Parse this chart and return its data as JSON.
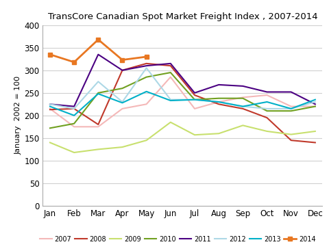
{
  "title": "TransCore Canadian Spot Market Freight Index , 2007-2014",
  "ylabel": "January  2002 = 100",
  "months": [
    "Jan",
    "Feb",
    "Mar",
    "Apr",
    "May",
    "Jun",
    "Jul",
    "Aug",
    "Sep",
    "Oct",
    "Nov",
    "Dec"
  ],
  "ylim": [
    0,
    400
  ],
  "yticks": [
    0,
    50,
    100,
    150,
    200,
    250,
    300,
    350,
    400
  ],
  "series": {
    "2007": {
      "values": [
        215,
        175,
        175,
        215,
        225,
        285,
        215,
        230,
        240,
        245,
        220,
        220
      ],
      "color": "#f4b8b8",
      "linewidth": 1.5,
      "marker": null
    },
    "2008": {
      "values": [
        213,
        215,
        180,
        300,
        315,
        310,
        245,
        225,
        215,
        195,
        145,
        140
      ],
      "color": "#c0392b",
      "linewidth": 1.5,
      "marker": null
    },
    "2009": {
      "values": [
        140,
        118,
        125,
        130,
        145,
        185,
        157,
        160,
        178,
        165,
        158,
        165
      ],
      "color": "#c8e06e",
      "linewidth": 1.5,
      "marker": null
    },
    "2010": {
      "values": [
        172,
        182,
        250,
        260,
        285,
        295,
        235,
        238,
        238,
        210,
        210,
        220
      ],
      "color": "#70a020",
      "linewidth": 1.5,
      "marker": null
    },
    "2011": {
      "values": [
        225,
        220,
        335,
        300,
        310,
        315,
        250,
        268,
        265,
        252,
        252,
        225
      ],
      "color": "#4b0082",
      "linewidth": 1.5,
      "marker": null
    },
    "2012": {
      "values": [
        225,
        215,
        275,
        230,
        305,
        235,
        235,
        230,
        220,
        215,
        215,
        230
      ],
      "color": "#add8e6",
      "linewidth": 1.5,
      "marker": null
    },
    "2013": {
      "values": [
        220,
        200,
        248,
        228,
        253,
        233,
        235,
        230,
        220,
        230,
        215,
        235
      ],
      "color": "#00b0c8",
      "linewidth": 1.5,
      "marker": null
    },
    "2014": {
      "values": [
        335,
        318,
        368,
        323,
        330,
        null,
        null,
        null,
        null,
        null,
        null,
        null
      ],
      "color": "#e87722",
      "linewidth": 2.0,
      "marker": "s"
    }
  },
  "legend_order": [
    "2007",
    "2008",
    "2009",
    "2010",
    "2011",
    "2012",
    "2013",
    "2014"
  ],
  "background_color": "#ffffff",
  "grid_color": "#d0d0d0",
  "figsize": [
    4.8,
    3.67
  ],
  "dpi": 100
}
